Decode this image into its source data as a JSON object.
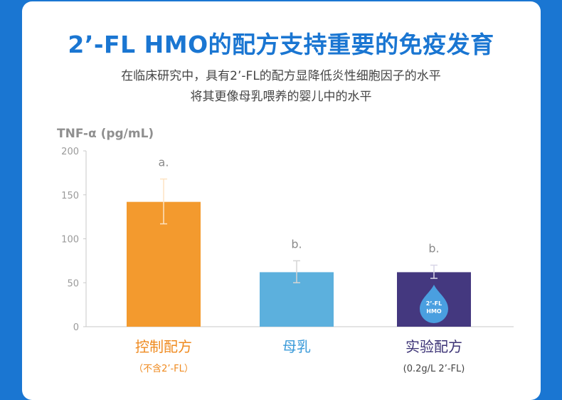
{
  "header": {
    "title": "2’-FL HMO的配方支持重要的免疫发育",
    "subtitle_line1": "在临床研究中，具有2’-FL的配方显降低炎性细胞因子的水平",
    "subtitle_line2": "将其更像母乳喂养的婴儿中的水平"
  },
  "chart_data": {
    "type": "bar",
    "ylabel": "TNF-α (pg/mL)",
    "ylim": [
      0,
      200
    ],
    "yticks": [
      0,
      50,
      100,
      150,
      200
    ],
    "grid": false,
    "categories": [
      "控制配方",
      "母乳",
      "实验配方"
    ],
    "category_notes": [
      "（不含2’-FL）",
      "",
      "(0.2g/L 2’-FL)"
    ],
    "values": [
      142,
      62,
      62
    ],
    "error": [
      [
        117,
        168
      ],
      [
        50,
        75
      ],
      [
        55,
        70
      ]
    ],
    "significance": [
      "a.",
      "b.",
      "b."
    ],
    "colors": [
      "#f39a2e",
      "#5cb0dd",
      "#44387f"
    ],
    "label_colors": [
      "#ef8a1f",
      "#3a9ad9",
      "#3b3275"
    ],
    "badge": {
      "line1": "2’-FL",
      "line2": "HMO",
      "color": "#4a9fe0"
    }
  }
}
